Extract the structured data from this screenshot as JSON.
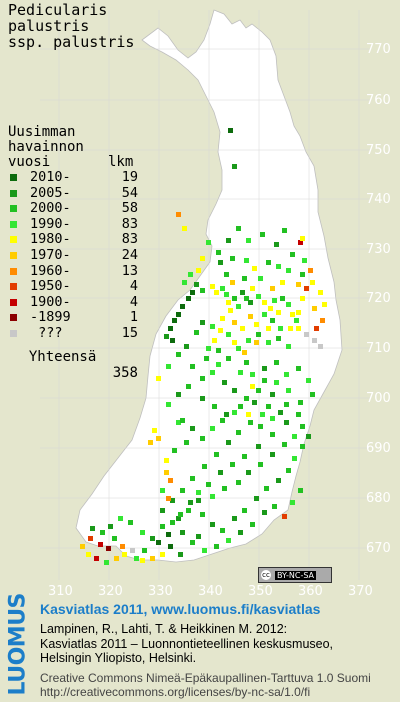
{
  "title": {
    "line1": "Pedicularis",
    "line2": "palustris",
    "line3": "ssp. palustris"
  },
  "legend": {
    "heading": [
      "Uusimman",
      "havainnon"
    ],
    "col_year": "vuosi",
    "col_count": "lkm",
    "items": [
      {
        "label": "2010-",
        "count": "19",
        "color": "#0d6b0d"
      },
      {
        "label": "2005-",
        "count": "54",
        "color": "#1a991a"
      },
      {
        "label": "2000-",
        "count": "58",
        "color": "#22c022"
      },
      {
        "label": "1990-",
        "count": "83",
        "color": "#33e633"
      },
      {
        "label": "1980-",
        "count": "83",
        "color": "#ffff00"
      },
      {
        "label": "1970-",
        "count": "24",
        "color": "#ffcc00"
      },
      {
        "label": "1960-",
        "count": "13",
        "color": "#ff8c00"
      },
      {
        "label": "1950-",
        "count": "4",
        "color": "#e23c00"
      },
      {
        "label": "1900-",
        "count": "4",
        "color": "#c40000"
      },
      {
        "label": "-1899",
        "count": "1",
        "color": "#8b0000"
      },
      {
        "label": " ???",
        "count": "15",
        "color": "#c8c8c8"
      }
    ],
    "total_label": "Yhteensä",
    "total_count": "358"
  },
  "y_axis": [
    "770",
    "760",
    "750",
    "740",
    "730",
    "720",
    "710",
    "700",
    "690",
    "680",
    "670"
  ],
  "x_axis": [
    "310",
    "320",
    "330",
    "340",
    "350",
    "360",
    "370"
  ],
  "license_badge": "BY-NC-SA",
  "footer": {
    "logo": "LUOMUS",
    "title": "Kasviatlas 2011, www.luomus.fi/kasviatlas",
    "citation": [
      "Lampinen, R., Lahti, T. & Heikkinen M. 2012:",
      "Kasviatlas 2011 – Luonnontieteellinen keskusmuseo,",
      "Helsingin Yliopisto, Helsinki."
    ],
    "license": [
      "Creative Commons Nimeä-Epäkaupallinen-Tarttuva 1.0 Suomi",
      "http://creativecommons.org/licenses/by-nc-sa/1.0/fi"
    ]
  },
  "map_colors": {
    "land": "#ffffff",
    "sea": "#e4e6cd",
    "grid": "#d0d0d0",
    "label": "#ffffff"
  }
}
